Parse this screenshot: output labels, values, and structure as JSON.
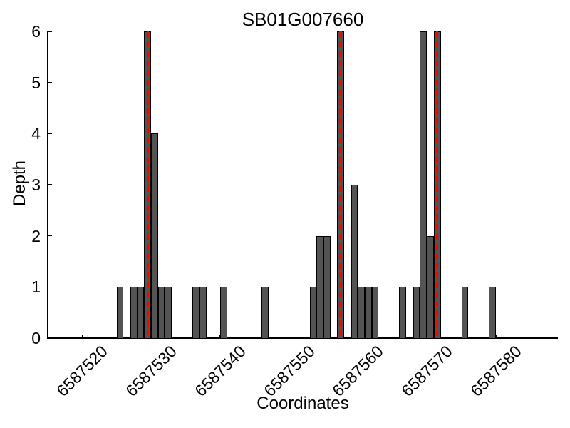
{
  "chart_data": {
    "type": "bar",
    "title": "SB01G007660",
    "xlabel": "Coordinates",
    "ylabel": "Depth",
    "xlim": [
      6587515,
      6587589
    ],
    "ylim": [
      0,
      6
    ],
    "xticks": [
      6587520,
      6587530,
      6587540,
      6587550,
      6587560,
      6587570,
      6587580
    ],
    "yticks": [
      0,
      1,
      2,
      3,
      4,
      5,
      6
    ],
    "grid": false,
    "legend": null,
    "bar_unit_width": 1,
    "bars": [
      {
        "x": 6587525,
        "depth": 1
      },
      {
        "x": 6587527,
        "depth": 1
      },
      {
        "x": 6587528,
        "depth": 1
      },
      {
        "x": 6587529,
        "depth": 6
      },
      {
        "x": 6587530,
        "depth": 4
      },
      {
        "x": 6587531,
        "depth": 1
      },
      {
        "x": 6587532,
        "depth": 1
      },
      {
        "x": 6587536,
        "depth": 1
      },
      {
        "x": 6587537,
        "depth": 1
      },
      {
        "x": 6587540,
        "depth": 1
      },
      {
        "x": 6587546,
        "depth": 1
      },
      {
        "x": 6587553,
        "depth": 1
      },
      {
        "x": 6587554,
        "depth": 2
      },
      {
        "x": 6587555,
        "depth": 2
      },
      {
        "x": 6587557,
        "depth": 6
      },
      {
        "x": 6587559,
        "depth": 3
      },
      {
        "x": 6587560,
        "depth": 1
      },
      {
        "x": 6587561,
        "depth": 1
      },
      {
        "x": 6587562,
        "depth": 1
      },
      {
        "x": 6587566,
        "depth": 1
      },
      {
        "x": 6587568,
        "depth": 1
      },
      {
        "x": 6587569,
        "depth": 6
      },
      {
        "x": 6587570,
        "depth": 2
      },
      {
        "x": 6587571,
        "depth": 6
      },
      {
        "x": 6587575,
        "depth": 1
      },
      {
        "x": 6587579,
        "depth": 1
      }
    ],
    "marker_lines_x": [
      6587529.5,
      6587557.5,
      6587571.5
    ],
    "colors": {
      "bar_fill": "#545454",
      "bar_edge": "#000000",
      "marker_line": "#ff0000",
      "axis": "#000000",
      "text": "#000000",
      "background": "#ffffff"
    }
  }
}
